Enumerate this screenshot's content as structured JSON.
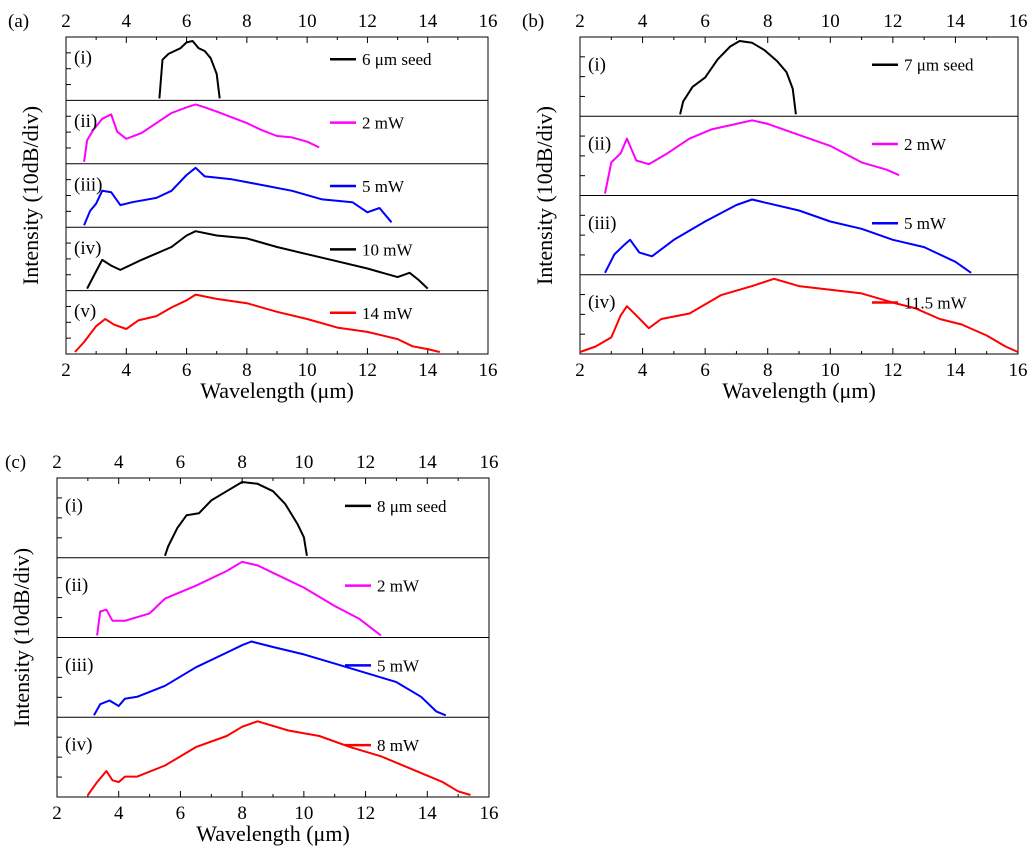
{
  "chart_data": [
    {
      "type": "line",
      "panel_label": "(a)",
      "xlabel": "Wavelength (μm)",
      "ylabel": "Intensity (10dB/div)",
      "xlim": [
        2,
        16
      ],
      "xticks": [
        "2",
        "4",
        "6",
        "8",
        "10",
        "12",
        "14",
        "16"
      ],
      "top_axis_ticks": true,
      "series": [
        {
          "name": "6 μm seed",
          "tag": "(i)",
          "color": "#000000",
          "x": [
            5.1,
            5.2,
            5.4,
            5.6,
            5.8,
            6.0,
            6.2,
            6.4,
            6.6,
            6.8,
            7.0,
            7.1
          ],
          "y": [
            -40,
            -13,
            -9,
            -7,
            -5,
            -1,
            0,
            -5,
            -7,
            -12,
            -23,
            -40
          ]
        },
        {
          "name": "2 mW",
          "tag": "(ii)",
          "color": "#ff00ff",
          "x": [
            2.6,
            2.7,
            2.9,
            3.2,
            3.5,
            3.7,
            4.0,
            4.5,
            5.0,
            5.5,
            6.0,
            6.3,
            6.6,
            7.0,
            7.5,
            8.0,
            8.5,
            9.0,
            9.5,
            10.0,
            10.4
          ],
          "y": [
            -40,
            -25,
            -18,
            -10,
            -7,
            -19,
            -24,
            -20,
            -13,
            -6,
            -2,
            0,
            -2,
            -5,
            -9,
            -13,
            -18,
            -22,
            -23,
            -26,
            -30
          ]
        },
        {
          "name": "5 mW",
          "tag": "(iii)",
          "color": "#0000ff",
          "x": [
            2.6,
            2.8,
            3.0,
            3.2,
            3.5,
            3.8,
            4.2,
            5.0,
            5.5,
            6.0,
            6.3,
            6.6,
            7.5,
            8.5,
            9.5,
            10.5,
            11.5,
            12.0,
            12.4,
            12.8
          ],
          "y": [
            -40,
            -30,
            -25,
            -16,
            -17,
            -26,
            -24,
            -21,
            -16,
            -5,
            0,
            -6,
            -8,
            -12,
            -16,
            -22,
            -24,
            -31,
            -28,
            -38
          ]
        },
        {
          "name": "10 mW",
          "tag": "(iv)",
          "color": "#000000",
          "x": [
            2.7,
            3.0,
            3.2,
            3.5,
            3.8,
            4.5,
            5.5,
            6.0,
            6.3,
            7.0,
            8.0,
            9.0,
            10.0,
            11.0,
            12.0,
            13.0,
            13.4,
            13.7,
            14.0
          ],
          "y": [
            -40,
            -28,
            -20,
            -24,
            -27,
            -20,
            -11,
            -3,
            0,
            -3,
            -5,
            -11,
            -16,
            -21,
            -26,
            -32,
            -29,
            -34,
            -40
          ]
        },
        {
          "name": "14 mW",
          "tag": "(v)",
          "color": "#ff0000",
          "x": [
            2.3,
            2.6,
            3.0,
            3.3,
            3.6,
            4.0,
            4.4,
            5.0,
            5.5,
            6.0,
            6.3,
            7.0,
            8.0,
            9.0,
            10.0,
            11.0,
            12.0,
            13.0,
            13.5,
            14.0,
            14.4
          ],
          "y": [
            -40,
            -33,
            -22,
            -17,
            -21,
            -24,
            -18,
            -15,
            -9,
            -4,
            0,
            -3,
            -6,
            -12,
            -17,
            -23,
            -26,
            -31,
            -36,
            -38,
            -40
          ]
        }
      ]
    },
    {
      "type": "line",
      "panel_label": "(b)",
      "xlabel": "Wavelength (μm)",
      "ylabel": "Intensity (10dB/div)",
      "xlim": [
        2,
        16
      ],
      "xticks": [
        "2",
        "4",
        "6",
        "8",
        "10",
        "12",
        "14",
        "16"
      ],
      "top_axis_ticks": true,
      "series": [
        {
          "name": "7 μm seed",
          "tag": "(i)",
          "color": "#000000",
          "x": [
            5.2,
            5.3,
            5.6,
            6.0,
            6.4,
            6.8,
            7.1,
            7.5,
            7.9,
            8.3,
            8.6,
            8.8,
            8.9
          ],
          "y": [
            -40,
            -33,
            -25,
            -20,
            -10,
            -3,
            0,
            -1,
            -5,
            -11,
            -17,
            -26,
            -40
          ]
        },
        {
          "name": "2 mW",
          "tag": "(ii)",
          "color": "#ff00ff",
          "x": [
            2.8,
            3.0,
            3.3,
            3.5,
            3.8,
            4.2,
            4.8,
            5.5,
            6.2,
            7.0,
            7.5,
            8.0,
            9.0,
            10.0,
            11.0,
            11.8,
            12.2
          ],
          "y": [
            -40,
            -23,
            -18,
            -10,
            -22,
            -24,
            -18,
            -10,
            -5,
            -2,
            0,
            -2,
            -8,
            -14,
            -23,
            -27,
            -30
          ]
        },
        {
          "name": "5 mW",
          "tag": "(iii)",
          "color": "#0000ff",
          "x": [
            2.8,
            3.1,
            3.4,
            3.6,
            3.9,
            4.3,
            5.0,
            6.0,
            7.0,
            7.5,
            8.0,
            9.0,
            10.0,
            11.0,
            12.0,
            13.0,
            14.0,
            14.5
          ],
          "y": [
            -40,
            -30,
            -25,
            -22,
            -29,
            -31,
            -22,
            -12,
            -3,
            0,
            -2,
            -6,
            -12,
            -16,
            -22,
            -26,
            -34,
            -40
          ]
        },
        {
          "name": "11.5 mW",
          "tag": "(iv)",
          "color": "#ff0000",
          "x": [
            2.0,
            2.5,
            3.0,
            3.3,
            3.5,
            3.8,
            4.2,
            4.6,
            5.5,
            6.5,
            7.5,
            8.2,
            9.0,
            10.0,
            11.0,
            12.0,
            12.7,
            13.5,
            14.2,
            15.0,
            15.6,
            16.0
          ],
          "y": [
            -40,
            -37,
            -32,
            -20,
            -15,
            -20,
            -27,
            -22,
            -19,
            -9,
            -4,
            0,
            -4,
            -6,
            -8,
            -13,
            -16,
            -22,
            -25,
            -31,
            -37,
            -40
          ]
        }
      ]
    },
    {
      "type": "line",
      "panel_label": "(c)",
      "xlabel": "Wavelength (μm)",
      "ylabel": "Intensity (10dB/div)",
      "xlim": [
        2,
        16
      ],
      "xticks": [
        "2",
        "4",
        "6",
        "8",
        "10",
        "12",
        "14",
        "16"
      ],
      "top_axis_ticks": true,
      "series": [
        {
          "name": "8 μm seed",
          "tag": "(i)",
          "color": "#000000",
          "x": [
            5.5,
            5.6,
            5.9,
            6.2,
            6.6,
            7.0,
            7.5,
            8.0,
            8.5,
            9.0,
            9.4,
            9.8,
            10.0,
            10.1
          ],
          "y": [
            -40,
            -35,
            -25,
            -18,
            -17,
            -10,
            -5,
            0,
            -1,
            -5,
            -12,
            -23,
            -30,
            -40
          ]
        },
        {
          "name": "2 mW",
          "tag": "(ii)",
          "color": "#ff00ff",
          "x": [
            3.3,
            3.4,
            3.6,
            3.8,
            4.2,
            5.0,
            5.5,
            6.5,
            7.5,
            8.0,
            8.5,
            9.0,
            10.0,
            11.0,
            11.8,
            12.5
          ],
          "y": [
            -40,
            -27,
            -26,
            -32,
            -32,
            -28,
            -20,
            -13,
            -5,
            0,
            -2,
            -6,
            -14,
            -24,
            -31,
            -40
          ]
        },
        {
          "name": "5 mW",
          "tag": "(iii)",
          "color": "#0000ff",
          "x": [
            3.2,
            3.4,
            3.7,
            4.0,
            4.2,
            4.6,
            5.5,
            6.5,
            7.5,
            8.0,
            8.3,
            9.0,
            10.0,
            11.0,
            12.0,
            13.0,
            13.8,
            14.3,
            14.6
          ],
          "y": [
            -40,
            -34,
            -32,
            -35,
            -31,
            -30,
            -24,
            -14,
            -6,
            -2,
            0,
            -3,
            -7,
            -12,
            -17,
            -22,
            -30,
            -38,
            -40
          ]
        },
        {
          "name": "8 mW",
          "tag": "(iv)",
          "color": "#ff0000",
          "x": [
            3.0,
            3.3,
            3.6,
            3.8,
            4.0,
            4.2,
            4.6,
            5.5,
            6.5,
            7.5,
            8.0,
            8.5,
            9.5,
            10.5,
            11.5,
            12.5,
            13.5,
            14.5,
            15.0,
            15.4
          ],
          "y": [
            -40,
            -33,
            -27,
            -32,
            -33,
            -30,
            -30,
            -24,
            -14,
            -8,
            -3,
            0,
            -5,
            -8,
            -14,
            -19,
            -26,
            -33,
            -38,
            -40
          ]
        }
      ]
    }
  ]
}
